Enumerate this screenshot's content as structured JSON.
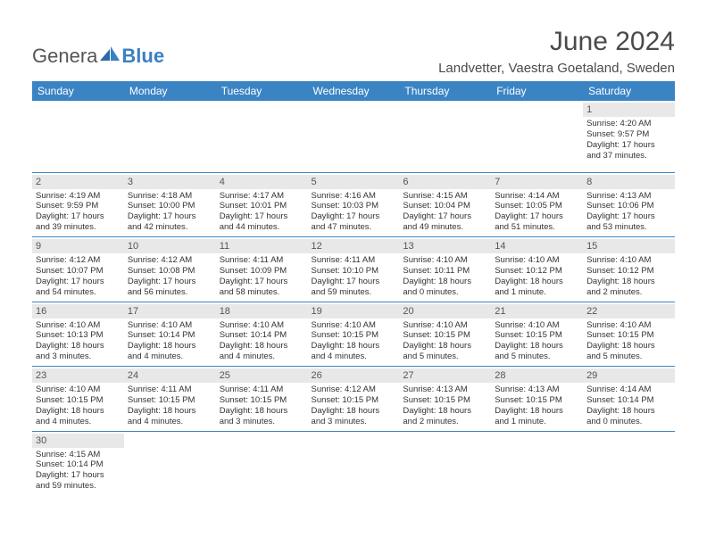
{
  "logo": {
    "part1": "Genera",
    "part2": "Blue"
  },
  "title": "June 2024",
  "location": "Landvetter, Vaestra Goetaland, Sweden",
  "colors": {
    "header_bg": "#3b84c4",
    "header_text": "#ffffff",
    "daybar_bg": "#e8e8e8",
    "rule": "#3b84c4",
    "text": "#333333",
    "logo_gray": "#555555",
    "logo_blue": "#3b7fc4"
  },
  "weekdays": [
    "Sunday",
    "Monday",
    "Tuesday",
    "Wednesday",
    "Thursday",
    "Friday",
    "Saturday"
  ],
  "weeks": [
    [
      null,
      null,
      null,
      null,
      null,
      null,
      {
        "n": "1",
        "sunrise": "4:20 AM",
        "sunset": "9:57 PM",
        "daylight": "17 hours and 37 minutes."
      }
    ],
    [
      {
        "n": "2",
        "sunrise": "4:19 AM",
        "sunset": "9:59 PM",
        "daylight": "17 hours and 39 minutes."
      },
      {
        "n": "3",
        "sunrise": "4:18 AM",
        "sunset": "10:00 PM",
        "daylight": "17 hours and 42 minutes."
      },
      {
        "n": "4",
        "sunrise": "4:17 AM",
        "sunset": "10:01 PM",
        "daylight": "17 hours and 44 minutes."
      },
      {
        "n": "5",
        "sunrise": "4:16 AM",
        "sunset": "10:03 PM",
        "daylight": "17 hours and 47 minutes."
      },
      {
        "n": "6",
        "sunrise": "4:15 AM",
        "sunset": "10:04 PM",
        "daylight": "17 hours and 49 minutes."
      },
      {
        "n": "7",
        "sunrise": "4:14 AM",
        "sunset": "10:05 PM",
        "daylight": "17 hours and 51 minutes."
      },
      {
        "n": "8",
        "sunrise": "4:13 AM",
        "sunset": "10:06 PM",
        "daylight": "17 hours and 53 minutes."
      }
    ],
    [
      {
        "n": "9",
        "sunrise": "4:12 AM",
        "sunset": "10:07 PM",
        "daylight": "17 hours and 54 minutes."
      },
      {
        "n": "10",
        "sunrise": "4:12 AM",
        "sunset": "10:08 PM",
        "daylight": "17 hours and 56 minutes."
      },
      {
        "n": "11",
        "sunrise": "4:11 AM",
        "sunset": "10:09 PM",
        "daylight": "17 hours and 58 minutes."
      },
      {
        "n": "12",
        "sunrise": "4:11 AM",
        "sunset": "10:10 PM",
        "daylight": "17 hours and 59 minutes."
      },
      {
        "n": "13",
        "sunrise": "4:10 AM",
        "sunset": "10:11 PM",
        "daylight": "18 hours and 0 minutes."
      },
      {
        "n": "14",
        "sunrise": "4:10 AM",
        "sunset": "10:12 PM",
        "daylight": "18 hours and 1 minute."
      },
      {
        "n": "15",
        "sunrise": "4:10 AM",
        "sunset": "10:12 PM",
        "daylight": "18 hours and 2 minutes."
      }
    ],
    [
      {
        "n": "16",
        "sunrise": "4:10 AM",
        "sunset": "10:13 PM",
        "daylight": "18 hours and 3 minutes."
      },
      {
        "n": "17",
        "sunrise": "4:10 AM",
        "sunset": "10:14 PM",
        "daylight": "18 hours and 4 minutes."
      },
      {
        "n": "18",
        "sunrise": "4:10 AM",
        "sunset": "10:14 PM",
        "daylight": "18 hours and 4 minutes."
      },
      {
        "n": "19",
        "sunrise": "4:10 AM",
        "sunset": "10:15 PM",
        "daylight": "18 hours and 4 minutes."
      },
      {
        "n": "20",
        "sunrise": "4:10 AM",
        "sunset": "10:15 PM",
        "daylight": "18 hours and 5 minutes."
      },
      {
        "n": "21",
        "sunrise": "4:10 AM",
        "sunset": "10:15 PM",
        "daylight": "18 hours and 5 minutes."
      },
      {
        "n": "22",
        "sunrise": "4:10 AM",
        "sunset": "10:15 PM",
        "daylight": "18 hours and 5 minutes."
      }
    ],
    [
      {
        "n": "23",
        "sunrise": "4:10 AM",
        "sunset": "10:15 PM",
        "daylight": "18 hours and 4 minutes."
      },
      {
        "n": "24",
        "sunrise": "4:11 AM",
        "sunset": "10:15 PM",
        "daylight": "18 hours and 4 minutes."
      },
      {
        "n": "25",
        "sunrise": "4:11 AM",
        "sunset": "10:15 PM",
        "daylight": "18 hours and 3 minutes."
      },
      {
        "n": "26",
        "sunrise": "4:12 AM",
        "sunset": "10:15 PM",
        "daylight": "18 hours and 3 minutes."
      },
      {
        "n": "27",
        "sunrise": "4:13 AM",
        "sunset": "10:15 PM",
        "daylight": "18 hours and 2 minutes."
      },
      {
        "n": "28",
        "sunrise": "4:13 AM",
        "sunset": "10:15 PM",
        "daylight": "18 hours and 1 minute."
      },
      {
        "n": "29",
        "sunrise": "4:14 AM",
        "sunset": "10:14 PM",
        "daylight": "18 hours and 0 minutes."
      }
    ],
    [
      {
        "n": "30",
        "sunrise": "4:15 AM",
        "sunset": "10:14 PM",
        "daylight": "17 hours and 59 minutes."
      },
      null,
      null,
      null,
      null,
      null,
      null
    ]
  ],
  "labels": {
    "sunrise": "Sunrise: ",
    "sunset": "Sunset: ",
    "daylight": "Daylight: "
  }
}
